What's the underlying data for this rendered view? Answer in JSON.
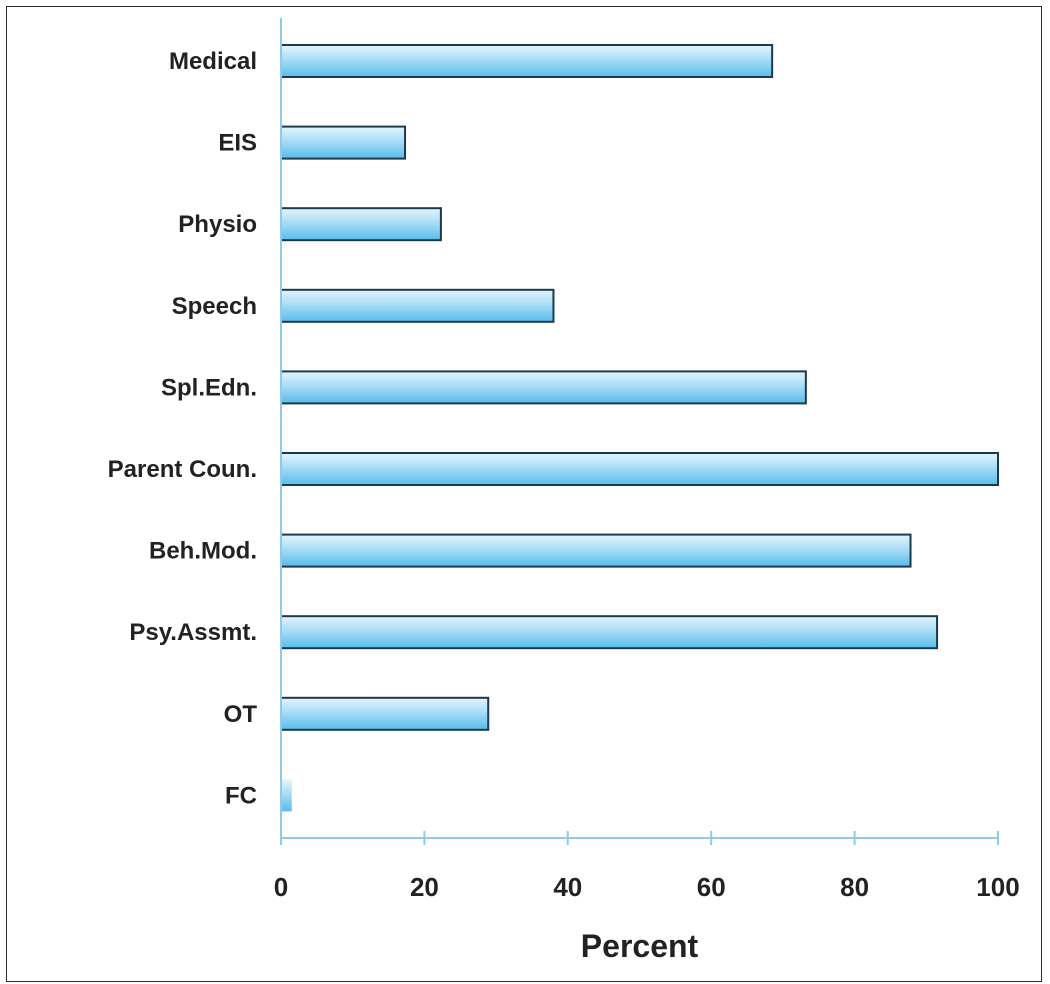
{
  "chart_data": {
    "type": "bar",
    "orientation": "horizontal",
    "categories": [
      "Medical",
      "EIS",
      "Physio",
      "Speech",
      "Spl.Edn.",
      "Parent Coun.",
      "Beh.Mod.",
      "Psy.Assmt.",
      "OT",
      "FC"
    ],
    "values": [
      68.5,
      17.3,
      22.3,
      38,
      73.2,
      100,
      87.8,
      91.5,
      28.9,
      1.5
    ],
    "xlabel": "Percent",
    "ylabel": "",
    "xlim": [
      0,
      100
    ],
    "xticks": [
      0,
      20,
      40,
      60,
      80,
      100
    ],
    "tick_labels": [
      "0",
      "20",
      "40",
      "60",
      "80",
      "100"
    ],
    "grid": false,
    "legend": "none",
    "colors": {
      "bar_light": "#e4f5fd",
      "bar_mid": "#a9ddf6",
      "bar_dark": "#58bce9",
      "bar_edge": "#1c3a4d",
      "axis": "#8fcbe8",
      "text": "#222222"
    }
  }
}
